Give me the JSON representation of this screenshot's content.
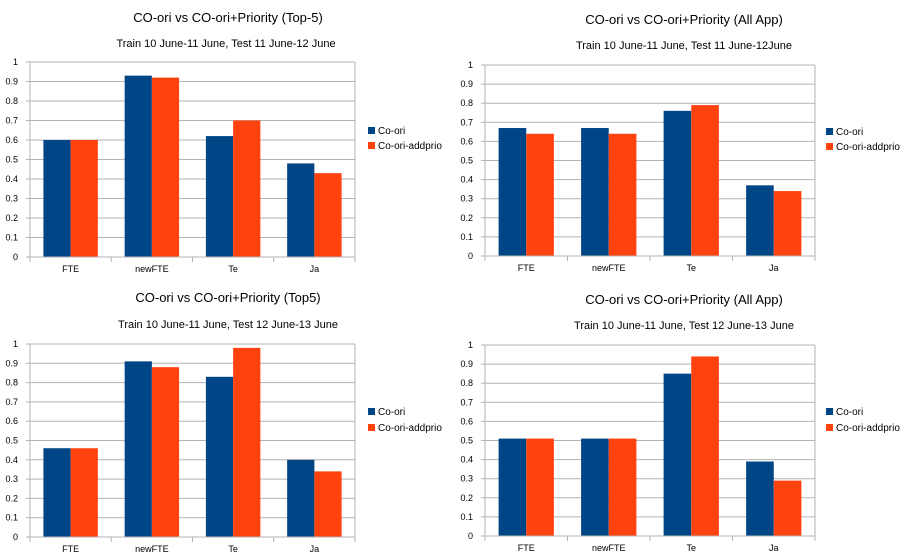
{
  "colors": {
    "co_ori": "#004586",
    "co_ori_addprio": "#ff420e",
    "grid": "#b3b3b3",
    "axis": "#b3b3b3"
  },
  "chart_data": [
    {
      "type": "bar",
      "title": "CO-ori vs CO-ori+Priority (Top-5)",
      "subtitle": "Train 10 June-11 June, Test 11 June-12 June",
      "categories": [
        "FTE",
        "newFTE",
        "Te",
        "Ja"
      ],
      "ylim": [
        0,
        1
      ],
      "yticks": [
        "0",
        "0.1",
        "0.2",
        "0.3",
        "0.4",
        "0.5",
        "0.6",
        "0.7",
        "0.8",
        "0.9",
        "1"
      ],
      "grid": true,
      "legend_position": "right",
      "series": [
        {
          "name": "Co-ori",
          "color": "#004586",
          "values": [
            0.6,
            0.93,
            0.62,
            0.48
          ]
        },
        {
          "name": "Co-ori-addprio",
          "color": "#ff420e",
          "values": [
            0.6,
            0.92,
            0.7,
            0.43
          ]
        }
      ]
    },
    {
      "type": "bar",
      "title": "CO-ori vs CO-ori+Priority (All App)",
      "subtitle": "Train 10 June-11 June, Test 11 June-12June",
      "categories": [
        "FTE",
        "newFTE",
        "Te",
        "Ja"
      ],
      "ylim": [
        0,
        1
      ],
      "yticks": [
        "0",
        "0.1",
        "0.2",
        "0.3",
        "0.4",
        "0.5",
        "0.6",
        "0.7",
        "0.8",
        "0.9",
        "1"
      ],
      "grid": true,
      "legend_position": "right",
      "series": [
        {
          "name": "Co-ori",
          "color": "#004586",
          "values": [
            0.67,
            0.67,
            0.76,
            0.37
          ]
        },
        {
          "name": "Co-ori-addprio",
          "color": "#ff420e",
          "values": [
            0.64,
            0.64,
            0.79,
            0.34
          ]
        }
      ]
    },
    {
      "type": "bar",
      "title": "CO-ori vs CO-ori+Priority (Top5)",
      "subtitle": "Train 10 June-11 June, Test 12 June-13 June",
      "categories": [
        "FTE",
        "newFTE",
        "Te",
        "Ja"
      ],
      "ylim": [
        0,
        1
      ],
      "yticks": [
        "0",
        "0.1",
        "0.2",
        "0.3",
        "0.4",
        "0.5",
        "0.6",
        "0.7",
        "0.8",
        "0.9",
        "1"
      ],
      "grid": true,
      "legend_position": "right",
      "series": [
        {
          "name": "Co-ori",
          "color": "#004586",
          "values": [
            0.46,
            0.91,
            0.83,
            0.4
          ]
        },
        {
          "name": "Co-ori-addprio",
          "color": "#ff420e",
          "values": [
            0.46,
            0.88,
            0.98,
            0.34
          ]
        }
      ]
    },
    {
      "type": "bar",
      "title": "CO-ori vs CO-ori+Priority (All App)",
      "subtitle": "Train 10 June-11 June, Test 12 June-13 June",
      "categories": [
        "FTE",
        "newFTE",
        "Te",
        "Ja"
      ],
      "ylim": [
        0,
        1
      ],
      "yticks": [
        "0",
        "0.1",
        "0.2",
        "0.3",
        "0.4",
        "0.5",
        "0.6",
        "0.7",
        "0.8",
        "0.9",
        "1"
      ],
      "grid": true,
      "legend_position": "right",
      "series": [
        {
          "name": "Co-ori",
          "color": "#004586",
          "values": [
            0.51,
            0.51,
            0.85,
            0.39
          ]
        },
        {
          "name": "Co-ori-addprio",
          "color": "#ff420e",
          "values": [
            0.51,
            0.51,
            0.94,
            0.29
          ]
        }
      ]
    }
  ]
}
